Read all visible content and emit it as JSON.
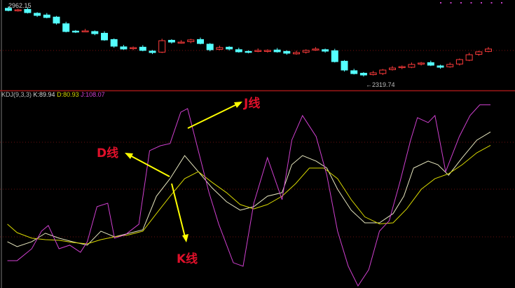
{
  "price_panel": {
    "high_label": "2962.15",
    "low_label": "←2319.74",
    "colors": {
      "up": "#ff3b3b",
      "down": "#54ffff"
    }
  },
  "indicator_panel": {
    "name": "KDJ(9,3,3)",
    "k_label": "K:89.94",
    "d_label": "D:80.93",
    "j_label": "J:108.07",
    "annotations": {
      "j": "J线",
      "d": "D线",
      "k": "K线"
    },
    "colors": {
      "k": "#e8e8c0",
      "d": "#d8d800",
      "j": "#d040d0",
      "arrow": "#ffff00",
      "annotation": "#e0102a"
    }
  },
  "chart_data": [
    {
      "type": "candlestick",
      "ylim": [
        2300,
        2980
      ],
      "close": [
        2943,
        2949,
        2923,
        2897,
        2878,
        2826,
        2748,
        2748,
        2754,
        2728,
        2670,
        2612,
        2586,
        2599,
        2573,
        2553,
        2663,
        2650,
        2650,
        2670,
        2637,
        2579,
        2599,
        2586,
        2560,
        2560,
        2573,
        2573,
        2560,
        2547,
        2553,
        2573,
        2586,
        2566,
        2469,
        2391,
        2358,
        2345,
        2365,
        2391,
        2410,
        2423,
        2443,
        2456,
        2436,
        2417,
        2443,
        2488,
        2533,
        2560,
        2586
      ],
      "high": 2962.15,
      "low": 2319.74
    },
    {
      "type": "line",
      "ylim": [
        -15,
        115
      ],
      "series": [
        {
          "name": "K",
          "points": [
            [
              0.4,
              16.1
            ],
            [
              1.4,
              12.8
            ],
            [
              2.9,
              16.1
            ],
            [
              4.3,
              21.8
            ],
            [
              5.7,
              18.5
            ],
            [
              7.1,
              16.1
            ],
            [
              8.6,
              13.8
            ],
            [
              10,
              23.2
            ],
            [
              11.4,
              19.4
            ],
            [
              12.9,
              21.8
            ],
            [
              14.3,
              24.1
            ],
            [
              15.7,
              46.7
            ],
            [
              17.1,
              58.5
            ],
            [
              18.6,
              74
            ],
            [
              20,
              63.2
            ],
            [
              21.4,
              52.4
            ],
            [
              22.9,
              43
            ],
            [
              24.3,
              37.3
            ],
            [
              25.7,
              39.7
            ],
            [
              27.1,
              46.7
            ],
            [
              28.6,
              49.1
            ],
            [
              29.6,
              67.9
            ],
            [
              30.7,
              74
            ],
            [
              32.1,
              70.3
            ],
            [
              33.2,
              65.6
            ],
            [
              34.3,
              51.4
            ],
            [
              35.7,
              37.3
            ],
            [
              37.1,
              28.8
            ],
            [
              38.6,
              28.8
            ],
            [
              40,
              35
            ],
            [
              41.1,
              46.7
            ],
            [
              42.1,
              65.6
            ],
            [
              43.6,
              70.3
            ],
            [
              44.6,
              67.9
            ],
            [
              45.7,
              60.8
            ],
            [
              47.1,
              72.6
            ],
            [
              48.6,
              84.4
            ],
            [
              50,
              89.9
            ]
          ]
        },
        {
          "name": "D",
          "points": [
            [
              0.4,
              27.9
            ],
            [
              1.4,
              22.2
            ],
            [
              2.9,
              18.5
            ],
            [
              4.3,
              17.5
            ],
            [
              5.7,
              17.1
            ],
            [
              7.1,
              15.6
            ],
            [
              8.6,
              14.7
            ],
            [
              10,
              17.5
            ],
            [
              11.4,
              19.4
            ],
            [
              12.9,
              20.8
            ],
            [
              14.3,
              23.2
            ],
            [
              15.7,
              35
            ],
            [
              17.1,
              46.7
            ],
            [
              18.6,
              58.5
            ],
            [
              20,
              63.2
            ],
            [
              21.4,
              56.1
            ],
            [
              22.9,
              49.1
            ],
            [
              24.3,
              41.1
            ],
            [
              25.7,
              38.2
            ],
            [
              27.1,
              41.1
            ],
            [
              28.6,
              46.7
            ],
            [
              30,
              55.2
            ],
            [
              31.4,
              65.6
            ],
            [
              32.9,
              65.6
            ],
            [
              34.3,
              58.5
            ],
            [
              35.7,
              44.4
            ],
            [
              37.1,
              32.8
            ],
            [
              38.6,
              28.1
            ],
            [
              40,
              28.8
            ],
            [
              41.4,
              38.2
            ],
            [
              42.9,
              51.4
            ],
            [
              44.3,
              58.5
            ],
            [
              45.7,
              61.8
            ],
            [
              47.1,
              67.9
            ],
            [
              48.6,
              75.9
            ],
            [
              50,
              80.9
            ]
          ]
        },
        {
          "name": "J",
          "points": [
            [
              0.4,
              3.4
            ],
            [
              1.4,
              3.4
            ],
            [
              2.9,
              11.4
            ],
            [
              3.9,
              23.2
            ],
            [
              4.6,
              27
            ],
            [
              5.7,
              11.4
            ],
            [
              6.8,
              13.8
            ],
            [
              7.9,
              9
            ],
            [
              8.6,
              16
            ],
            [
              9.6,
              39.7
            ],
            [
              10.7,
              42
            ],
            [
              11.4,
              18.5
            ],
            [
              12.5,
              20.8
            ],
            [
              13.9,
              27.9
            ],
            [
              15,
              77.3
            ],
            [
              16.1,
              80.6
            ],
            [
              17.1,
              82.1
            ],
            [
              18.2,
              103.2
            ],
            [
              18.9,
              105.6
            ],
            [
              20,
              77.3
            ],
            [
              21.1,
              49.1
            ],
            [
              22.1,
              27.9
            ],
            [
              23.6,
              2
            ],
            [
              24.6,
              -0.4
            ],
            [
              25.7,
              42
            ],
            [
              27.1,
              72.6
            ],
            [
              28.6,
              44.4
            ],
            [
              29.6,
              84.4
            ],
            [
              30.7,
              100.9
            ],
            [
              32.1,
              86.8
            ],
            [
              33.2,
              60.8
            ],
            [
              34.3,
              23.2
            ],
            [
              35.4,
              -0.4
            ],
            [
              36.4,
              -13.6
            ],
            [
              37.5,
              -2.7
            ],
            [
              38.6,
              23.2
            ],
            [
              39.6,
              30.2
            ],
            [
              40.7,
              56.1
            ],
            [
              41.8,
              84.4
            ],
            [
              42.5,
              99.5
            ],
            [
              43.6,
              96.2
            ],
            [
              44.3,
              100.9
            ],
            [
              45.4,
              63.2
            ],
            [
              46.8,
              86.8
            ],
            [
              47.9,
              100.9
            ],
            [
              48.9,
              108.1
            ],
            [
              50,
              108.1
            ]
          ]
        }
      ]
    }
  ]
}
